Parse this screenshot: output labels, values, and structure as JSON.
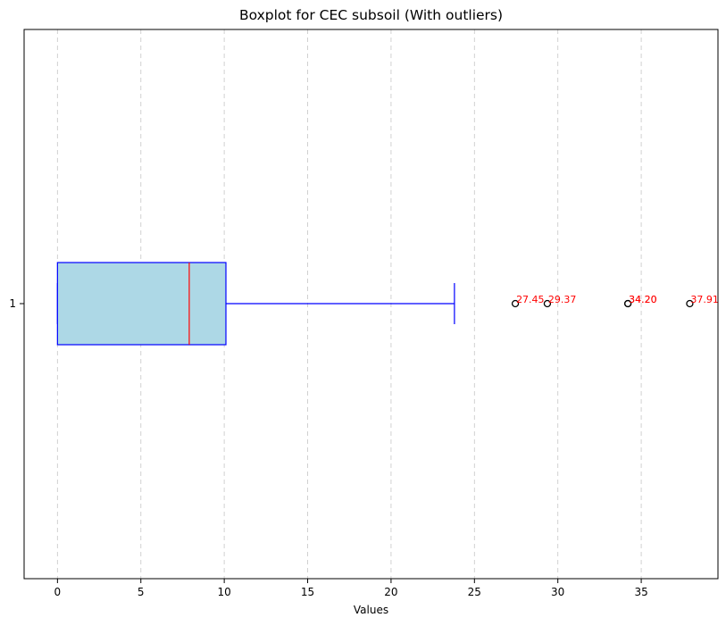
{
  "chart_data": {
    "type": "boxplot",
    "orientation": "horizontal",
    "title": "Boxplot for CEC subsoil (With outliers)",
    "xlabel": "Values",
    "ylabel": "",
    "xlim": [
      -2.0,
      39.6
    ],
    "x_ticks": [
      0,
      5,
      10,
      15,
      20,
      25,
      30,
      35
    ],
    "y_tick_labels": [
      "1"
    ],
    "grid": "x-axis dashed",
    "legend": "none",
    "box": {
      "label": "1",
      "whisker_low": 0.0,
      "q1": 0.0,
      "median": 7.9,
      "q3": 10.1,
      "whisker_high": 23.8
    },
    "outliers": [
      {
        "value": 27.45,
        "label": "27.45"
      },
      {
        "value": 29.37,
        "label": "29.37"
      },
      {
        "value": 34.2,
        "label": "34.20"
      },
      {
        "value": 34.2,
        "label": "34.20"
      },
      {
        "value": 37.91,
        "label": "37.91"
      }
    ],
    "colors": {
      "box_fill": "#add8e6",
      "box_edge": "#0000ff",
      "median": "#ff0000",
      "outlier_label": "#ff0000",
      "outlier_marker": "#000000",
      "grid": "#cccccc"
    }
  }
}
